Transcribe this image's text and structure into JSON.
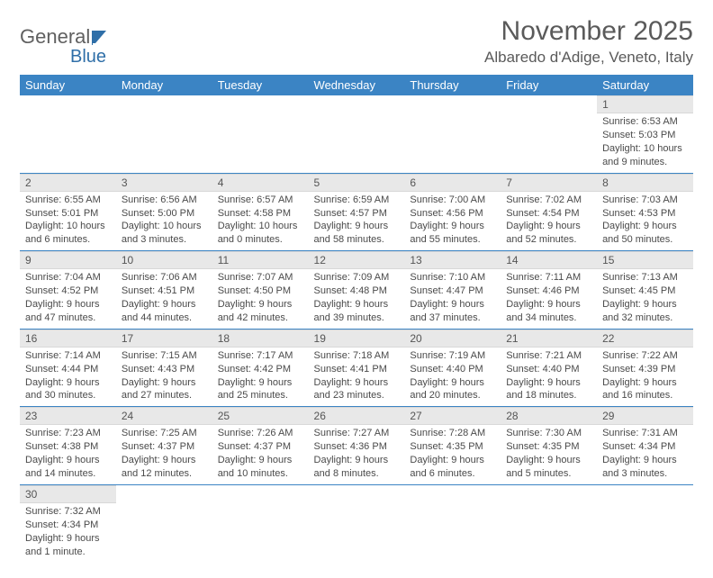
{
  "logo": {
    "part1": "General",
    "part2": "Blue"
  },
  "title": "November 2025",
  "location": "Albaredo d'Adige, Veneto, Italy",
  "colors": {
    "header_bg": "#3b84c4",
    "header_text": "#ffffff",
    "daynum_bg": "#e8e8e8",
    "rule": "#3b84c4",
    "body_text": "#4a4a4a"
  },
  "weekdays": [
    "Sunday",
    "Monday",
    "Tuesday",
    "Wednesday",
    "Thursday",
    "Friday",
    "Saturday"
  ],
  "weeks": [
    [
      null,
      null,
      null,
      null,
      null,
      null,
      {
        "n": "1",
        "sunrise": "Sunrise: 6:53 AM",
        "sunset": "Sunset: 5:03 PM",
        "daylight": "Daylight: 10 hours and 9 minutes."
      }
    ],
    [
      {
        "n": "2",
        "sunrise": "Sunrise: 6:55 AM",
        "sunset": "Sunset: 5:01 PM",
        "daylight": "Daylight: 10 hours and 6 minutes."
      },
      {
        "n": "3",
        "sunrise": "Sunrise: 6:56 AM",
        "sunset": "Sunset: 5:00 PM",
        "daylight": "Daylight: 10 hours and 3 minutes."
      },
      {
        "n": "4",
        "sunrise": "Sunrise: 6:57 AM",
        "sunset": "Sunset: 4:58 PM",
        "daylight": "Daylight: 10 hours and 0 minutes."
      },
      {
        "n": "5",
        "sunrise": "Sunrise: 6:59 AM",
        "sunset": "Sunset: 4:57 PM",
        "daylight": "Daylight: 9 hours and 58 minutes."
      },
      {
        "n": "6",
        "sunrise": "Sunrise: 7:00 AM",
        "sunset": "Sunset: 4:56 PM",
        "daylight": "Daylight: 9 hours and 55 minutes."
      },
      {
        "n": "7",
        "sunrise": "Sunrise: 7:02 AM",
        "sunset": "Sunset: 4:54 PM",
        "daylight": "Daylight: 9 hours and 52 minutes."
      },
      {
        "n": "8",
        "sunrise": "Sunrise: 7:03 AM",
        "sunset": "Sunset: 4:53 PM",
        "daylight": "Daylight: 9 hours and 50 minutes."
      }
    ],
    [
      {
        "n": "9",
        "sunrise": "Sunrise: 7:04 AM",
        "sunset": "Sunset: 4:52 PM",
        "daylight": "Daylight: 9 hours and 47 minutes."
      },
      {
        "n": "10",
        "sunrise": "Sunrise: 7:06 AM",
        "sunset": "Sunset: 4:51 PM",
        "daylight": "Daylight: 9 hours and 44 minutes."
      },
      {
        "n": "11",
        "sunrise": "Sunrise: 7:07 AM",
        "sunset": "Sunset: 4:50 PM",
        "daylight": "Daylight: 9 hours and 42 minutes."
      },
      {
        "n": "12",
        "sunrise": "Sunrise: 7:09 AM",
        "sunset": "Sunset: 4:48 PM",
        "daylight": "Daylight: 9 hours and 39 minutes."
      },
      {
        "n": "13",
        "sunrise": "Sunrise: 7:10 AM",
        "sunset": "Sunset: 4:47 PM",
        "daylight": "Daylight: 9 hours and 37 minutes."
      },
      {
        "n": "14",
        "sunrise": "Sunrise: 7:11 AM",
        "sunset": "Sunset: 4:46 PM",
        "daylight": "Daylight: 9 hours and 34 minutes."
      },
      {
        "n": "15",
        "sunrise": "Sunrise: 7:13 AM",
        "sunset": "Sunset: 4:45 PM",
        "daylight": "Daylight: 9 hours and 32 minutes."
      }
    ],
    [
      {
        "n": "16",
        "sunrise": "Sunrise: 7:14 AM",
        "sunset": "Sunset: 4:44 PM",
        "daylight": "Daylight: 9 hours and 30 minutes."
      },
      {
        "n": "17",
        "sunrise": "Sunrise: 7:15 AM",
        "sunset": "Sunset: 4:43 PM",
        "daylight": "Daylight: 9 hours and 27 minutes."
      },
      {
        "n": "18",
        "sunrise": "Sunrise: 7:17 AM",
        "sunset": "Sunset: 4:42 PM",
        "daylight": "Daylight: 9 hours and 25 minutes."
      },
      {
        "n": "19",
        "sunrise": "Sunrise: 7:18 AM",
        "sunset": "Sunset: 4:41 PM",
        "daylight": "Daylight: 9 hours and 23 minutes."
      },
      {
        "n": "20",
        "sunrise": "Sunrise: 7:19 AM",
        "sunset": "Sunset: 4:40 PM",
        "daylight": "Daylight: 9 hours and 20 minutes."
      },
      {
        "n": "21",
        "sunrise": "Sunrise: 7:21 AM",
        "sunset": "Sunset: 4:40 PM",
        "daylight": "Daylight: 9 hours and 18 minutes."
      },
      {
        "n": "22",
        "sunrise": "Sunrise: 7:22 AM",
        "sunset": "Sunset: 4:39 PM",
        "daylight": "Daylight: 9 hours and 16 minutes."
      }
    ],
    [
      {
        "n": "23",
        "sunrise": "Sunrise: 7:23 AM",
        "sunset": "Sunset: 4:38 PM",
        "daylight": "Daylight: 9 hours and 14 minutes."
      },
      {
        "n": "24",
        "sunrise": "Sunrise: 7:25 AM",
        "sunset": "Sunset: 4:37 PM",
        "daylight": "Daylight: 9 hours and 12 minutes."
      },
      {
        "n": "25",
        "sunrise": "Sunrise: 7:26 AM",
        "sunset": "Sunset: 4:37 PM",
        "daylight": "Daylight: 9 hours and 10 minutes."
      },
      {
        "n": "26",
        "sunrise": "Sunrise: 7:27 AM",
        "sunset": "Sunset: 4:36 PM",
        "daylight": "Daylight: 9 hours and 8 minutes."
      },
      {
        "n": "27",
        "sunrise": "Sunrise: 7:28 AM",
        "sunset": "Sunset: 4:35 PM",
        "daylight": "Daylight: 9 hours and 6 minutes."
      },
      {
        "n": "28",
        "sunrise": "Sunrise: 7:30 AM",
        "sunset": "Sunset: 4:35 PM",
        "daylight": "Daylight: 9 hours and 5 minutes."
      },
      {
        "n": "29",
        "sunrise": "Sunrise: 7:31 AM",
        "sunset": "Sunset: 4:34 PM",
        "daylight": "Daylight: 9 hours and 3 minutes."
      }
    ],
    [
      {
        "n": "30",
        "sunrise": "Sunrise: 7:32 AM",
        "sunset": "Sunset: 4:34 PM",
        "daylight": "Daylight: 9 hours and 1 minute."
      },
      null,
      null,
      null,
      null,
      null,
      null
    ]
  ]
}
